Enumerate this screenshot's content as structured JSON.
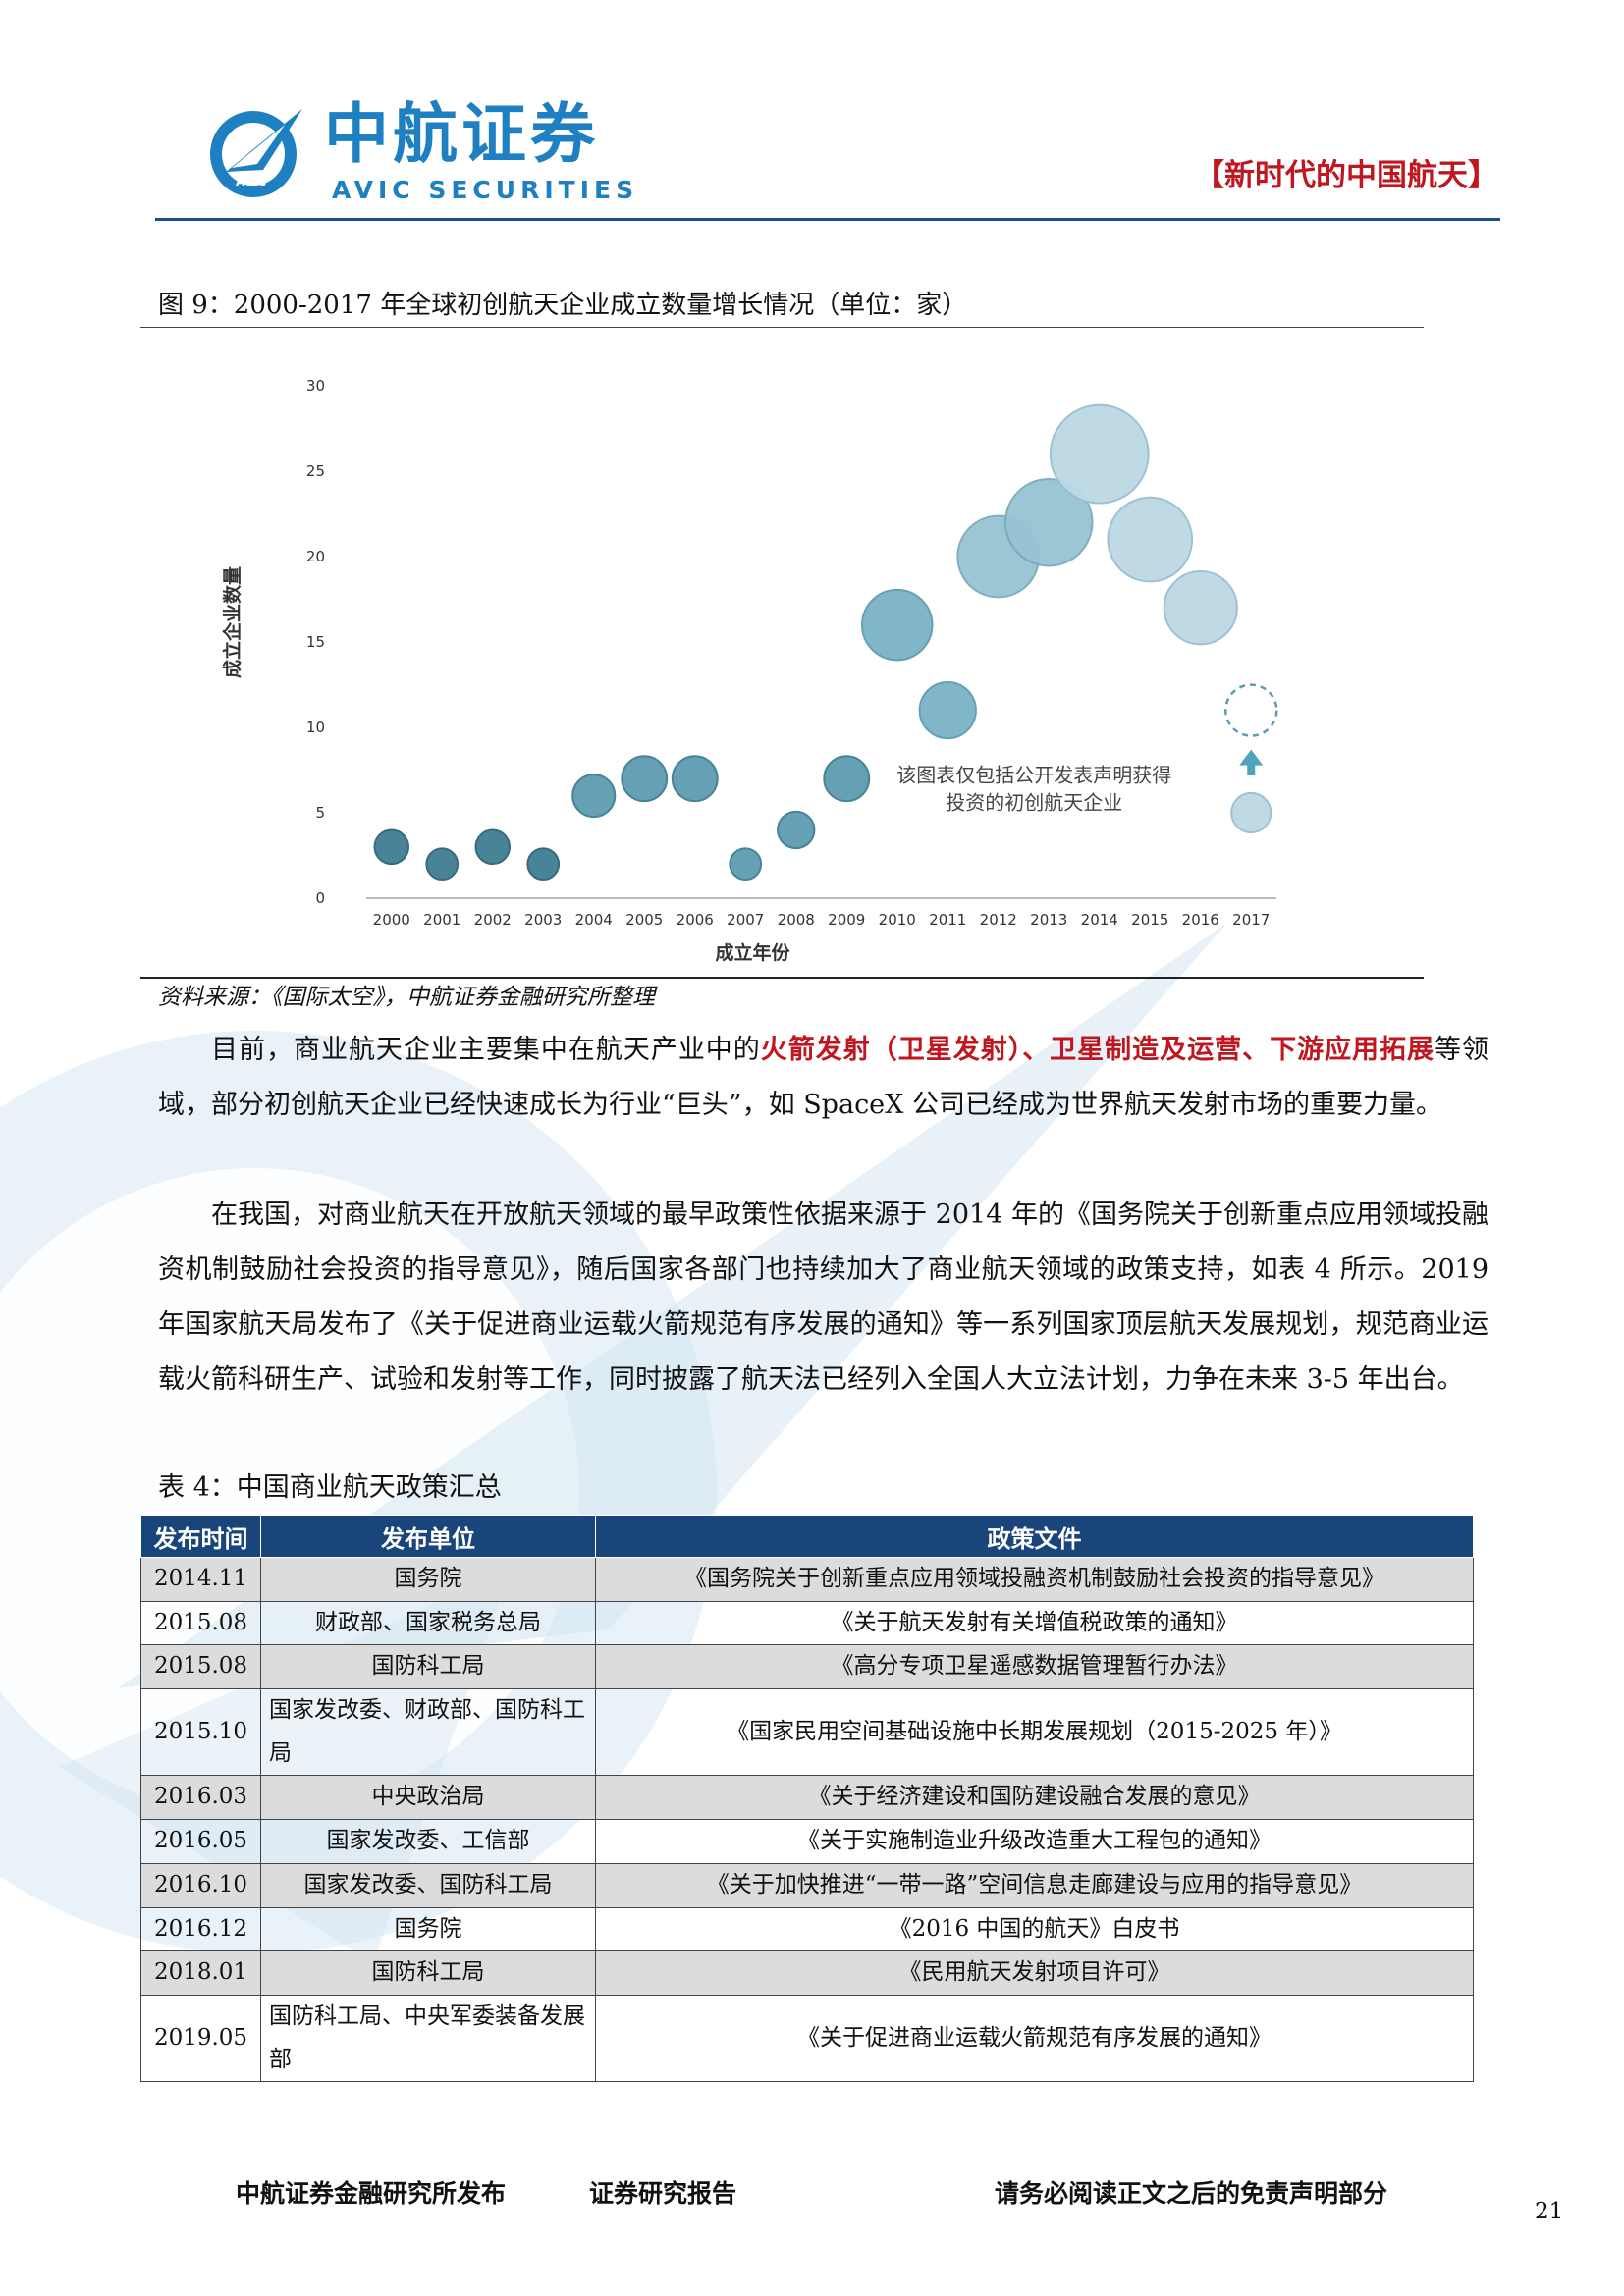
{
  "header": {
    "logo_cn": "中航证券",
    "logo_en": "AVIC SECURITIES",
    "logo_badge": "AVIC",
    "tag": "【新时代的中国航天】"
  },
  "figure": {
    "caption": "图 9：2000-2017 年全球初创航天企业成立数量增长情况（单位：家）",
    "source": "资料来源：《国际太空》，中航证券金融研究所整理"
  },
  "chart_data": {
    "type": "scatter",
    "title": "",
    "xlabel": "成立年份",
    "ylabel": "成立企业数量",
    "ylim": [
      0,
      30
    ],
    "yticks": [
      "0",
      "5",
      "10",
      "15",
      "20",
      "25",
      "30"
    ],
    "x": [
      "2000",
      "2001",
      "2002",
      "2003",
      "2004",
      "2005",
      "2006",
      "2007",
      "2008",
      "2009",
      "2010",
      "2011",
      "2012",
      "2013",
      "2014",
      "2015",
      "2016",
      "2017"
    ],
    "values": [
      3,
      2,
      3,
      2,
      6,
      7,
      7,
      2,
      4,
      7,
      16,
      11,
      20,
      22,
      26,
      21,
      17,
      5
    ],
    "projected": {
      "x": "2017",
      "value": 11
    },
    "annotation": "该图表仅包括公开发表声明获得投资的初创航天企业",
    "annotation_lines": [
      "该图表仅包括公开发表声明获得",
      "投资的初创航天企业"
    ],
    "grid": false
  },
  "paragraphs": {
    "p1_pre": "目前，商业航天企业主要集中在航天产业中的",
    "p1_highlight": "火箭发射（卫星发射）、卫星制造及运营、下游应用拓展",
    "p1_post": "等领域，部分初创航天企业已经快速成长为行业“巨头”，如 SpaceX 公司已经成为世界航天发射市场的重要力量。",
    "p2": "在我国，对商业航天在开放航天领域的最早政策性依据来源于 2014 年的《国务院关于创新重点应用领域投融资机制鼓励社会投资的指导意见》，随后国家各部门也持续加大了商业航天领域的政策支持，如表 4 所示。2019 年国家航天局发布了《关于促进商业运载火箭规范有序发展的通知》等一系列国家顶层航天发展规划，规范商业运载火箭科研生产、试验和发射等工作，同时披露了航天法已经列入全国人大立法计划，力争在未来 3-5 年出台。"
  },
  "table": {
    "caption": "表 4：中国商业航天政策汇总",
    "headers": [
      "发布时间",
      "发布单位",
      "政策文件"
    ],
    "rows": [
      {
        "date": "2014.11",
        "unit": "国务院",
        "doc": "《国务院关于创新重点应用领域投融资机制鼓励社会投资的指导意见》"
      },
      {
        "date": "2015.08",
        "unit": "财政部、国家税务总局",
        "doc": "《关于航天发射有关增值税政策的通知》"
      },
      {
        "date": "2015.08",
        "unit": "国防科工局",
        "doc": "《高分专项卫星遥感数据管理暂行办法》"
      },
      {
        "date": "2015.10",
        "unit": "国家发改委、财政部、国防科工局",
        "doc": "《国家民用空间基础设施中长期发展规划（2015-2025 年）》"
      },
      {
        "date": "2016.03",
        "unit": "中央政治局",
        "doc": "《关于经济建设和国防建设融合发展的意见》"
      },
      {
        "date": "2016.05",
        "unit": "国家发改委、工信部",
        "doc": "《关于实施制造业升级改造重大工程包的通知》"
      },
      {
        "date": "2016.10",
        "unit": "国家发改委、国防科工局",
        "doc": "《关于加快推进“一带一路”空间信息走廊建设与应用的指导意见》"
      },
      {
        "date": "2016.12",
        "unit": "国务院",
        "doc": "《2016 中国的航天》白皮书"
      },
      {
        "date": "2018.01",
        "unit": "国防科工局",
        "doc": "《民用航天发射项目许可》"
      },
      {
        "date": "2019.05",
        "unit": "国防科工局、中央军委装备发展部",
        "doc": "《关于促进商业运载火箭规范有序发展的通知》"
      }
    ]
  },
  "footer": {
    "left": "中航证券金融研究所发布",
    "mid": "证券研究报告",
    "right": "请务必阅读正文之后的免责声明部分",
    "page": "21"
  }
}
